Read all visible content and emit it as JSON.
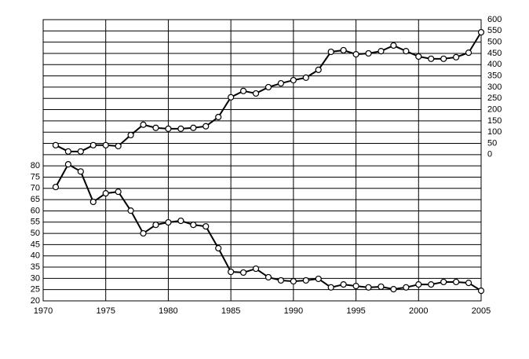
{
  "chart_data": {
    "type": "line",
    "x": [
      1971,
      1972,
      1973,
      1974,
      1975,
      1976,
      1977,
      1978,
      1979,
      1980,
      1981,
      1982,
      1983,
      1984,
      1985,
      1986,
      1987,
      1988,
      1989,
      1990,
      1991,
      1992,
      1993,
      1994,
      1995,
      1996,
      1997,
      1998,
      1999,
      2000,
      2001,
      2002,
      2003,
      2004,
      2005
    ],
    "series": [
      {
        "color": "#000000",
        "axis": "y2",
        "values": [
          42,
          14,
          14,
          42,
          42,
          38,
          87,
          133,
          119,
          115,
          115,
          119,
          126,
          167,
          255,
          283,
          272,
          300,
          317,
          331,
          342,
          377,
          457,
          464,
          446,
          450,
          460,
          485,
          460,
          436,
          426,
          426,
          433,
          453,
          544
        ]
      },
      {
        "color": "#000000",
        "values": [
          70.6,
          80.7,
          77.5,
          64,
          67.8,
          68.5,
          60.1,
          50,
          53.8,
          54.9,
          55.6,
          53.8,
          53.1,
          43.4,
          32.9,
          32.6,
          34.3,
          30.5,
          29.1,
          28.7,
          29.1,
          29.8,
          26,
          27.3,
          26.6,
          26,
          26.3,
          25.2,
          26,
          27.3,
          27.3,
          28.4,
          28.4,
          28,
          24.5
        ]
      }
    ],
    "xlim": [
      1970,
      2005
    ],
    "xticks": [
      1970,
      1975,
      1980,
      1985,
      1990,
      1995,
      2000,
      2005
    ],
    "ylim": [
      20,
      145
    ],
    "yticks": [
      20,
      25,
      30,
      35,
      40,
      45,
      50,
      55,
      60,
      65,
      70,
      75,
      80
    ],
    "y2lim": [
      -650,
      600
    ],
    "y2ticks": [
      0,
      50,
      100,
      150,
      200,
      250,
      300,
      350,
      400,
      450,
      500,
      550,
      600
    ],
    "grid": true
  }
}
